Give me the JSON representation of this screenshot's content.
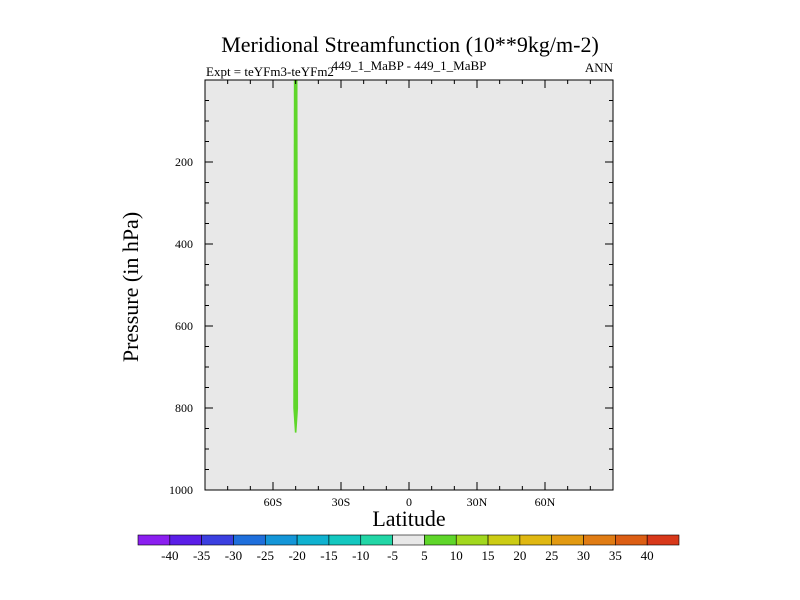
{
  "chart_data": {
    "type": "contour",
    "title": "Meridional Streamfunction (10**9kg/m-2)",
    "subtitle_left": "Expt = teYFm3-teYFm2",
    "subtitle_center": "449_1_MaBP - 449_1_MaBP",
    "subtitle_right": "ANN",
    "xlabel": "Latitude",
    "ylabel": "Pressure (in hPa)",
    "xlim": [
      -90,
      90
    ],
    "ylim": [
      0,
      1000
    ],
    "x_ticks": [
      {
        "value": -60,
        "label": "60S"
      },
      {
        "value": -30,
        "label": "30S"
      },
      {
        "value": 0,
        "label": "0"
      },
      {
        "value": 30,
        "label": "30N"
      },
      {
        "value": 60,
        "label": "60N"
      }
    ],
    "y_ticks": [
      {
        "value": 200,
        "label": "200"
      },
      {
        "value": 400,
        "label": "400"
      },
      {
        "value": 600,
        "label": "600"
      },
      {
        "value": 800,
        "label": "800"
      },
      {
        "value": 1000,
        "label": "1000"
      }
    ],
    "background_color": "#e8e8e8",
    "feature": {
      "description_value": "positive band 5 to 10",
      "lat_center": -50,
      "lat_half_width": 0.8,
      "p_top": 0,
      "p_bottom": 860,
      "color": "#5fd62a"
    },
    "colorbar": {
      "labels": [
        "-40",
        "-35",
        "-30",
        "-25",
        "-20",
        "-15",
        "-10",
        "-5",
        "5",
        "10",
        "15",
        "20",
        "25",
        "30",
        "35",
        "40"
      ],
      "colors": [
        "#8b1ff0",
        "#5b1ee8",
        "#3b3fe0",
        "#1f6fdc",
        "#1496d8",
        "#10b2d0",
        "#14c8c0",
        "#22d6a6",
        "#e8e8e8",
        "#5fd62a",
        "#a2d81e",
        "#cccc14",
        "#e0b812",
        "#e29a12",
        "#e07c14",
        "#dc5e14",
        "#d8381a"
      ]
    }
  }
}
